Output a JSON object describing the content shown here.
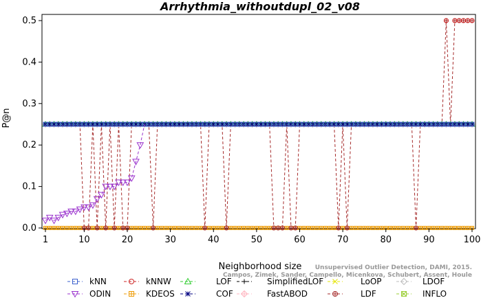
{
  "chart_data": {
    "type": "line",
    "title": "Arrhythmia_withoutdupl_02_v08",
    "xlabel": "Neighborhood size",
    "ylabel": "P@n",
    "xlim": [
      1,
      100
    ],
    "ylim": [
      0,
      0.5
    ],
    "x_ticks": [
      "1",
      "10",
      "20",
      "30",
      "40",
      "50",
      "60",
      "70",
      "80",
      "90",
      "100"
    ],
    "y_ticks": [
      "0.0",
      "0.1",
      "0.2",
      "0.3",
      "0.4",
      "0.5"
    ],
    "credit_line1": "Unsupervised Outlier Detection, DAMI, 2015.",
    "credit_line2": "Campos, Zimek, Sander, Campello, Micenkova, Schubert, Assent, Houle",
    "colors": {
      "kNN": "#3a5fcd",
      "kNNW": "#cd2626",
      "LOF": "#32cd32",
      "SimplifiedLOF": "#000000",
      "LoOP": "#e5e500",
      "LDOF": "#bebebe",
      "ODIN": "#9a32cd",
      "KDEOS": "#ee9a00",
      "COF": "#000080",
      "FastABOD": "#ffb6c1",
      "LDF": "#a52a2a",
      "INFLO": "#9acd32"
    },
    "legend": [
      {
        "name": "kNN",
        "marker": "square",
        "color": "#3a5fcd"
      },
      {
        "name": "kNNW",
        "marker": "circle",
        "color": "#cd2626"
      },
      {
        "name": "LOF",
        "marker": "triangle-up",
        "color": "#32cd32"
      },
      {
        "name": "SimplifiedLOF",
        "marker": "plus",
        "color": "#000000"
      },
      {
        "name": "LoOP",
        "marker": "cross",
        "color": "#e5e500"
      },
      {
        "name": "LDOF",
        "marker": "diamond",
        "color": "#bebebe"
      },
      {
        "name": "ODIN",
        "marker": "triangle-down",
        "color": "#9a32cd"
      },
      {
        "name": "KDEOS",
        "marker": "square-cross",
        "color": "#ee9a00"
      },
      {
        "name": "COF",
        "marker": "asterisk",
        "color": "#000080"
      },
      {
        "name": "FastABOD",
        "marker": "diamond-plus",
        "color": "#ffb6c1"
      },
      {
        "name": "LDF",
        "marker": "circle-plus",
        "color": "#a52a2a"
      },
      {
        "name": "INFLO",
        "marker": "square-x",
        "color": "#9acd32"
      }
    ],
    "series_notes": {
      "constant_0.25": [
        "kNN",
        "LOF",
        "SimplifiedLOF",
        "LoOP",
        "LDOF",
        "COF",
        "FastABOD",
        "INFLO"
      ],
      "constant_0": [
        "KDEOS"
      ]
    },
    "ldf_zero_at_k": [
      10,
      11,
      13,
      15,
      17,
      19,
      20,
      26,
      38,
      43,
      54,
      55,
      56,
      58,
      59,
      69,
      71,
      87
    ],
    "ldf_half_from_k": 94,
    "ldf_dip_at_k": [
      95
    ],
    "odin": {
      "x": [
        1,
        2,
        3,
        4,
        5,
        6,
        7,
        8,
        9,
        10,
        11,
        12,
        13,
        14,
        15,
        16,
        17,
        18,
        19,
        20,
        21,
        22,
        23,
        24
      ],
      "y": [
        0.018,
        0.025,
        0.018,
        0.025,
        0.032,
        0.035,
        0.04,
        0.04,
        0.045,
        0.05,
        0.05,
        0.055,
        0.07,
        0.08,
        0.1,
        0.1,
        0.1,
        0.11,
        0.11,
        0.11,
        0.12,
        0.16,
        0.2,
        0.25
      ]
    }
  }
}
